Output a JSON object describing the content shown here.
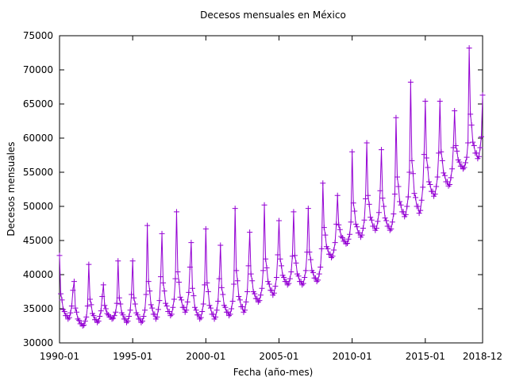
{
  "chart_data": {
    "type": "line",
    "title": "Decesos mensuales en México",
    "xlabel": "Fecha (año-mes)",
    "ylabel": "Decesos mensuales",
    "xlim": [
      "1990-01",
      "2018-12"
    ],
    "xticks": [
      "1990-01",
      "1995-01",
      "2000-01",
      "2005-01",
      "2010-01",
      "2015-01",
      "2018-12"
    ],
    "ylim": [
      30000,
      75000
    ],
    "yticks": [
      30000,
      35000,
      40000,
      45000,
      50000,
      55000,
      60000,
      65000,
      70000,
      75000
    ],
    "grid": false,
    "x": [
      "1990-01",
      "1990-02",
      "1990-03",
      "1990-04",
      "1990-05",
      "1990-06",
      "1990-07",
      "1990-08",
      "1990-09",
      "1990-10",
      "1990-11",
      "1990-12",
      "1991-01",
      "1991-02",
      "1991-03",
      "1991-04",
      "1991-05",
      "1991-06",
      "1991-07",
      "1991-08",
      "1991-09",
      "1991-10",
      "1991-11",
      "1991-12",
      "1992-01",
      "1992-02",
      "1992-03",
      "1992-04",
      "1992-05",
      "1992-06",
      "1992-07",
      "1992-08",
      "1992-09",
      "1992-10",
      "1992-11",
      "1992-12",
      "1993-01",
      "1993-02",
      "1993-03",
      "1993-04",
      "1993-05",
      "1993-06",
      "1993-07",
      "1993-08",
      "1993-09",
      "1993-10",
      "1993-11",
      "1993-12",
      "1994-01",
      "1994-02",
      "1994-03",
      "1994-04",
      "1994-05",
      "1994-06",
      "1994-07",
      "1994-08",
      "1994-09",
      "1994-10",
      "1994-11",
      "1994-12",
      "1995-01",
      "1995-02",
      "1995-03",
      "1995-04",
      "1995-05",
      "1995-06",
      "1995-07",
      "1995-08",
      "1995-09",
      "1995-10",
      "1995-11",
      "1995-12",
      "1996-01",
      "1996-02",
      "1996-03",
      "1996-04",
      "1996-05",
      "1996-06",
      "1996-07",
      "1996-08",
      "1996-09",
      "1996-10",
      "1996-11",
      "1996-12",
      "1997-01",
      "1997-02",
      "1997-03",
      "1997-04",
      "1997-05",
      "1997-06",
      "1997-07",
      "1997-08",
      "1997-09",
      "1997-10",
      "1997-11",
      "1997-12",
      "1998-01",
      "1998-02",
      "1998-03",
      "1998-04",
      "1998-05",
      "1998-06",
      "1998-07",
      "1998-08",
      "1998-09",
      "1998-10",
      "1998-11",
      "1998-12",
      "1999-01",
      "1999-02",
      "1999-03",
      "1999-04",
      "1999-05",
      "1999-06",
      "1999-07",
      "1999-08",
      "1999-09",
      "1999-10",
      "1999-11",
      "1999-12",
      "2000-01",
      "2000-02",
      "2000-03",
      "2000-04",
      "2000-05",
      "2000-06",
      "2000-07",
      "2000-08",
      "2000-09",
      "2000-10",
      "2000-11",
      "2000-12",
      "2001-01",
      "2001-02",
      "2001-03",
      "2001-04",
      "2001-05",
      "2001-06",
      "2001-07",
      "2001-08",
      "2001-09",
      "2001-10",
      "2001-11",
      "2001-12",
      "2002-01",
      "2002-02",
      "2002-03",
      "2002-04",
      "2002-05",
      "2002-06",
      "2002-07",
      "2002-08",
      "2002-09",
      "2002-10",
      "2002-11",
      "2002-12",
      "2003-01",
      "2003-02",
      "2003-03",
      "2003-04",
      "2003-05",
      "2003-06",
      "2003-07",
      "2003-08",
      "2003-09",
      "2003-10",
      "2003-11",
      "2003-12",
      "2004-01",
      "2004-02",
      "2004-03",
      "2004-04",
      "2004-05",
      "2004-06",
      "2004-07",
      "2004-08",
      "2004-09",
      "2004-10",
      "2004-11",
      "2004-12",
      "2005-01",
      "2005-02",
      "2005-03",
      "2005-04",
      "2005-05",
      "2005-06",
      "2005-07",
      "2005-08",
      "2005-09",
      "2005-10",
      "2005-11",
      "2005-12",
      "2006-01",
      "2006-02",
      "2006-03",
      "2006-04",
      "2006-05",
      "2006-06",
      "2006-07",
      "2006-08",
      "2006-09",
      "2006-10",
      "2006-11",
      "2006-12",
      "2007-01",
      "2007-02",
      "2007-03",
      "2007-04",
      "2007-05",
      "2007-06",
      "2007-07",
      "2007-08",
      "2007-09",
      "2007-10",
      "2007-11",
      "2007-12",
      "2008-01",
      "2008-02",
      "2008-03",
      "2008-04",
      "2008-05",
      "2008-06",
      "2008-07",
      "2008-08",
      "2008-09",
      "2008-10",
      "2008-11",
      "2008-12",
      "2009-01",
      "2009-02",
      "2009-03",
      "2009-04",
      "2009-05",
      "2009-06",
      "2009-07",
      "2009-08",
      "2009-09",
      "2009-10",
      "2009-11",
      "2009-12",
      "2010-01",
      "2010-02",
      "2010-03",
      "2010-04",
      "2010-05",
      "2010-06",
      "2010-07",
      "2010-08",
      "2010-09",
      "2010-10",
      "2010-11",
      "2010-12",
      "2011-01",
      "2011-02",
      "2011-03",
      "2011-04",
      "2011-05",
      "2011-06",
      "2011-07",
      "2011-08",
      "2011-09",
      "2011-10",
      "2011-11",
      "2011-12",
      "2012-01",
      "2012-02",
      "2012-03",
      "2012-04",
      "2012-05",
      "2012-06",
      "2012-07",
      "2012-08",
      "2012-09",
      "2012-10",
      "2012-11",
      "2012-12",
      "2013-01",
      "2013-02",
      "2013-03",
      "2013-04",
      "2013-05",
      "2013-06",
      "2013-07",
      "2013-08",
      "2013-09",
      "2013-10",
      "2013-11",
      "2013-12",
      "2014-01",
      "2014-02",
      "2014-03",
      "2014-04",
      "2014-05",
      "2014-06",
      "2014-07",
      "2014-08",
      "2014-09",
      "2014-10",
      "2014-11",
      "2014-12",
      "2015-01",
      "2015-02",
      "2015-03",
      "2015-04",
      "2015-05",
      "2015-06",
      "2015-07",
      "2015-08",
      "2015-09",
      "2015-10",
      "2015-11",
      "2015-12",
      "2016-01",
      "2016-02",
      "2016-03",
      "2016-04",
      "2016-05",
      "2016-06",
      "2016-07",
      "2016-08",
      "2016-09",
      "2016-10",
      "2016-11",
      "2016-12",
      "2017-01",
      "2017-02",
      "2017-03",
      "2017-04",
      "2017-05",
      "2017-06",
      "2017-07",
      "2017-08",
      "2017-09",
      "2017-10",
      "2017-11",
      "2017-12",
      "2018-01",
      "2018-02",
      "2018-03",
      "2018-04",
      "2018-05",
      "2018-06",
      "2018-07",
      "2018-08",
      "2018-09",
      "2018-10",
      "2018-11",
      "2018-12"
    ],
    "series": [
      {
        "color": "#9400d3",
        "values": [
          42800,
          37200,
          36300,
          34900,
          34600,
          34000,
          34000,
          33500,
          33700,
          34400,
          35400,
          37700,
          39000,
          35100,
          34500,
          33500,
          33300,
          32800,
          32800,
          32500,
          32600,
          33200,
          33800,
          35400,
          41500,
          36400,
          35600,
          34300,
          34000,
          33400,
          33400,
          33000,
          33200,
          33900,
          34700,
          36800,
          38500,
          35500,
          35000,
          34300,
          34100,
          33800,
          33800,
          33500,
          33600,
          34000,
          34500,
          35800,
          42000,
          36600,
          35700,
          34400,
          34100,
          33500,
          33500,
          33000,
          33200,
          33900,
          34800,
          37100,
          42000,
          36600,
          35700,
          34400,
          34100,
          33500,
          33500,
          33000,
          33200,
          33900,
          34800,
          37100,
          47200,
          39000,
          37600,
          35600,
          35100,
          34200,
          34200,
          33500,
          33800,
          34900,
          36200,
          39700,
          46000,
          38800,
          37600,
          35800,
          35400,
          34600,
          34600,
          34000,
          34200,
          35200,
          36400,
          39400,
          49200,
          40400,
          38900,
          36700,
          36300,
          35200,
          35200,
          34500,
          34800,
          36000,
          37400,
          41100,
          44700,
          38000,
          36900,
          35200,
          34800,
          34100,
          34100,
          33500,
          33700,
          34600,
          35700,
          38500,
          46700,
          38800,
          37500,
          35500,
          35100,
          34200,
          34200,
          33500,
          33800,
          34800,
          36100,
          39400,
          44300,
          38100,
          37100,
          35500,
          35200,
          34500,
          34500,
          34000,
          34200,
          35000,
          36100,
          38600,
          49700,
          40600,
          39100,
          36800,
          36300,
          35300,
          35300,
          34500,
          34800,
          36000,
          37500,
          41300,
          46200,
          40100,
          39100,
          37500,
          37200,
          36500,
          36500,
          36000,
          36200,
          37000,
          38000,
          40600,
          50200,
          42300,
          41000,
          39000,
          38600,
          37700,
          37700,
          37000,
          37300,
          38300,
          39600,
          42900,
          47900,
          42300,
          41300,
          39900,
          39600,
          39000,
          39000,
          38500,
          38700,
          39400,
          40400,
          42700,
          49200,
          42800,
          41700,
          40100,
          39800,
          39000,
          39000,
          38500,
          38700,
          39600,
          40600,
          43300,
          49700,
          43300,
          42200,
          40600,
          40300,
          39500,
          39500,
          39000,
          39200,
          40100,
          41100,
          43800,
          53400,
          46900,
          45800,
          44100,
          43800,
          43000,
          43000,
          42500,
          42700,
          43600,
          44700,
          47400,
          51600,
          47300,
          46600,
          45600,
          45400,
          44900,
          44900,
          44500,
          44600,
          45200,
          45900,
          47700,
          58000,
          50500,
          49300,
          47400,
          47000,
          46100,
          46100,
          45500,
          45800,
          46800,
          48000,
          51100,
          59300,
          51600,
          50300,
          48400,
          48000,
          47100,
          47100,
          46500,
          46800,
          47800,
          49100,
          52300,
          58300,
          51200,
          50000,
          48300,
          47900,
          47100,
          47100,
          46500,
          46700,
          47700,
          48900,
          51800,
          63000,
          54300,
          52900,
          50700,
          50200,
          49200,
          49200,
          48500,
          48800,
          50000,
          51400,
          55000,
          68200,
          56700,
          54800,
          51900,
          51300,
          50000,
          50000,
          49000,
          49400,
          50900,
          52800,
          57600,
          65400,
          57100,
          55700,
          53600,
          53200,
          52200,
          52200,
          51500,
          51800,
          52900,
          54300,
          57800,
          65400,
          58000,
          56700,
          54900,
          54500,
          53600,
          53600,
          53000,
          53200,
          54200,
          55500,
          58600,
          64000,
          58900,
          58100,
          56800,
          56500,
          55900,
          55900,
          55500,
          55700,
          56400,
          57200,
          59300,
          73200,
          63500,
          61900,
          59400,
          58900,
          57800,
          57800,
          57000,
          57300,
          58600,
          60200,
          66300
        ]
      }
    ]
  }
}
